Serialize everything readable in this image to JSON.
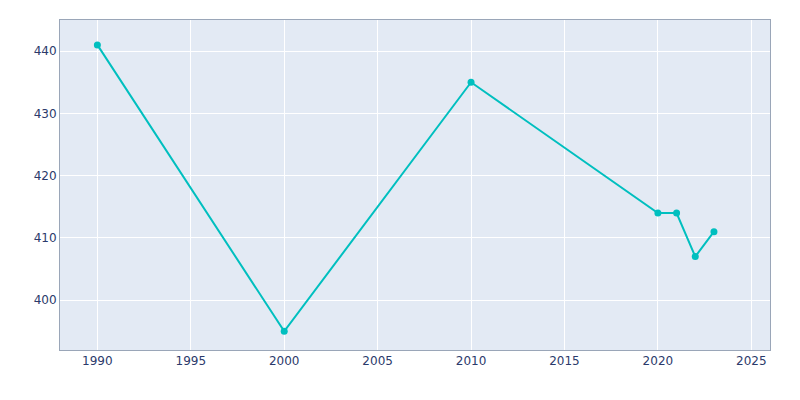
{
  "chart_data": {
    "type": "line",
    "x": [
      1990,
      2000,
      2010,
      2020,
      2021,
      2022,
      2023
    ],
    "values": [
      441,
      395,
      435,
      414,
      414,
      407,
      411
    ],
    "color": "#00BFBF",
    "marker": "circle",
    "xlim": [
      1988,
      2026
    ],
    "ylim": [
      392,
      445
    ],
    "xticks": [
      1990,
      1995,
      2000,
      2005,
      2010,
      2015,
      2020,
      2025
    ],
    "yticks": [
      400,
      410,
      420,
      430,
      440
    ],
    "grid": true
  }
}
